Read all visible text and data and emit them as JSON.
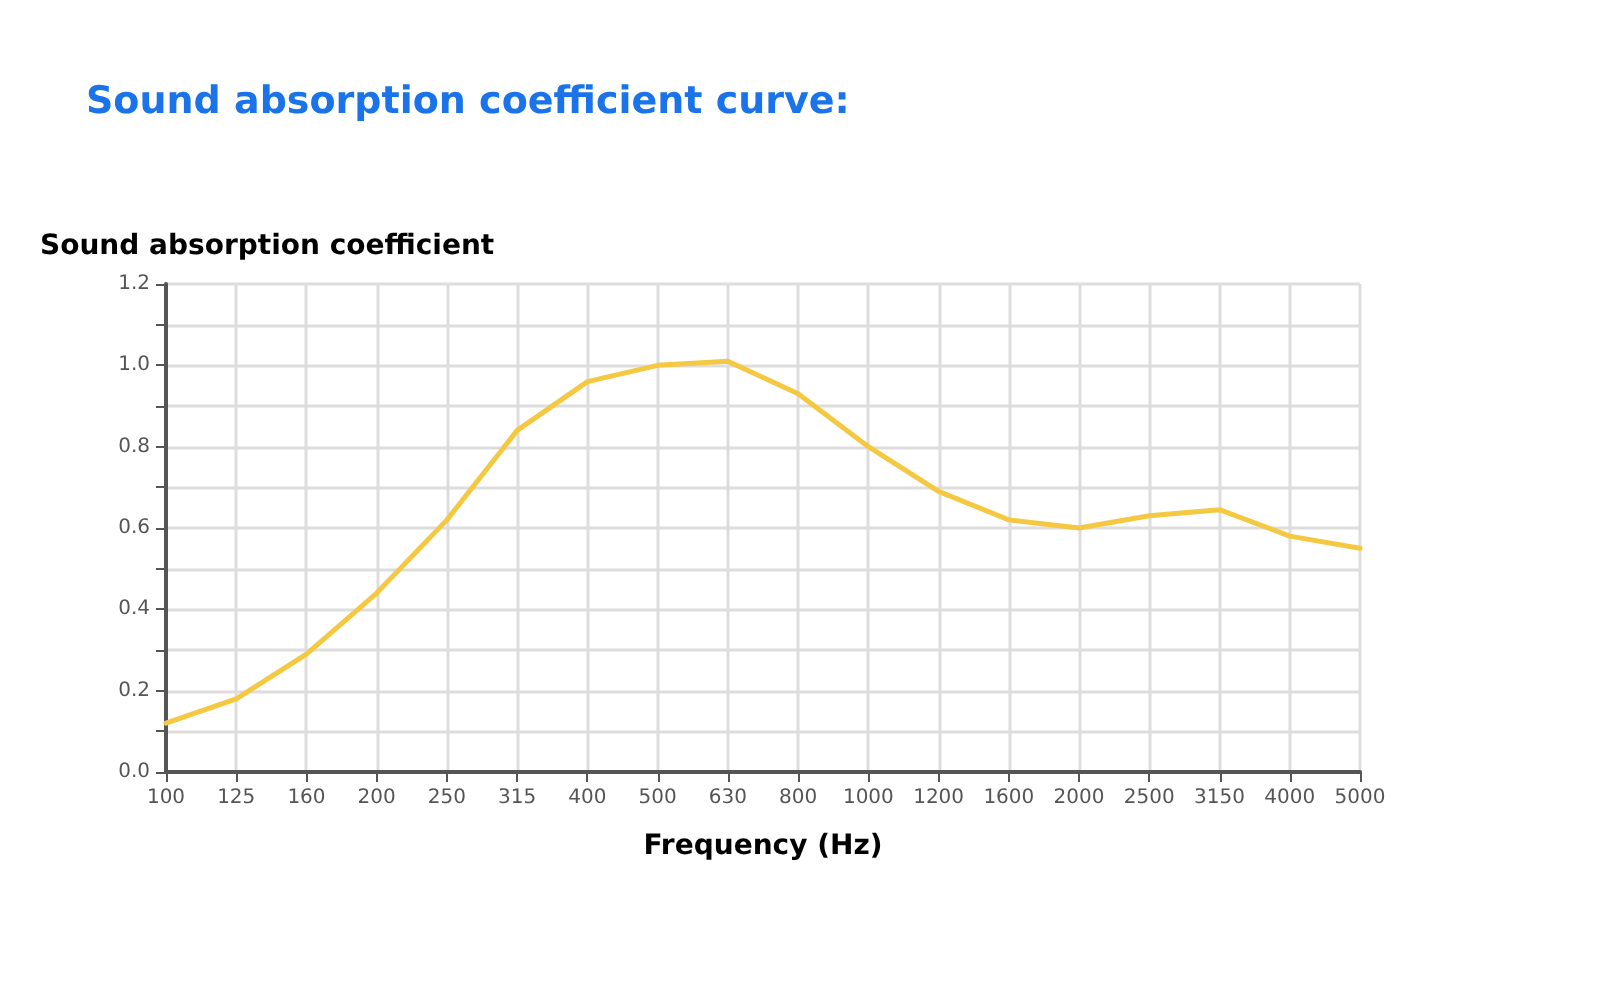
{
  "chart_data": {
    "type": "line",
    "title": "Sound absorption coefficient curve:",
    "xlabel": "Frequency (Hz)",
    "ylabel": "Sound absorption coefficient",
    "categories": [
      "100",
      "125",
      "160",
      "200",
      "250",
      "315",
      "400",
      "500",
      "630",
      "800",
      "1000",
      "1200",
      "1600",
      "2000",
      "2500",
      "3150",
      "4000",
      "5000"
    ],
    "series": [
      {
        "color": "#f5c842",
        "values": [
          0.12,
          0.18,
          0.29,
          0.44,
          0.62,
          0.84,
          0.96,
          1.0,
          1.01,
          0.93,
          0.8,
          0.69,
          0.62,
          0.6,
          0.63,
          0.645,
          0.58,
          0.55
        ]
      }
    ],
    "ylim": [
      0,
      1.2
    ],
    "yticks": [
      {
        "value": 0,
        "label": "0.0"
      },
      {
        "value": 0.1,
        "label": null
      },
      {
        "value": 0.2,
        "label": "0.2"
      },
      {
        "value": 0.3,
        "label": null
      },
      {
        "value": 0.4,
        "label": "0.4"
      },
      {
        "value": 0.5,
        "label": null
      },
      {
        "value": 0.6,
        "label": "0.6"
      },
      {
        "value": 0.7,
        "label": null
      },
      {
        "value": 0.8,
        "label": "0.8"
      },
      {
        "value": 0.9,
        "label": null
      },
      {
        "value": 1.0,
        "label": "1.0"
      },
      {
        "value": 1.1,
        "label": null
      },
      {
        "value": 1.2,
        "label": "1.2"
      }
    ],
    "grid": true,
    "marker": "none",
    "line_style": "solid"
  }
}
